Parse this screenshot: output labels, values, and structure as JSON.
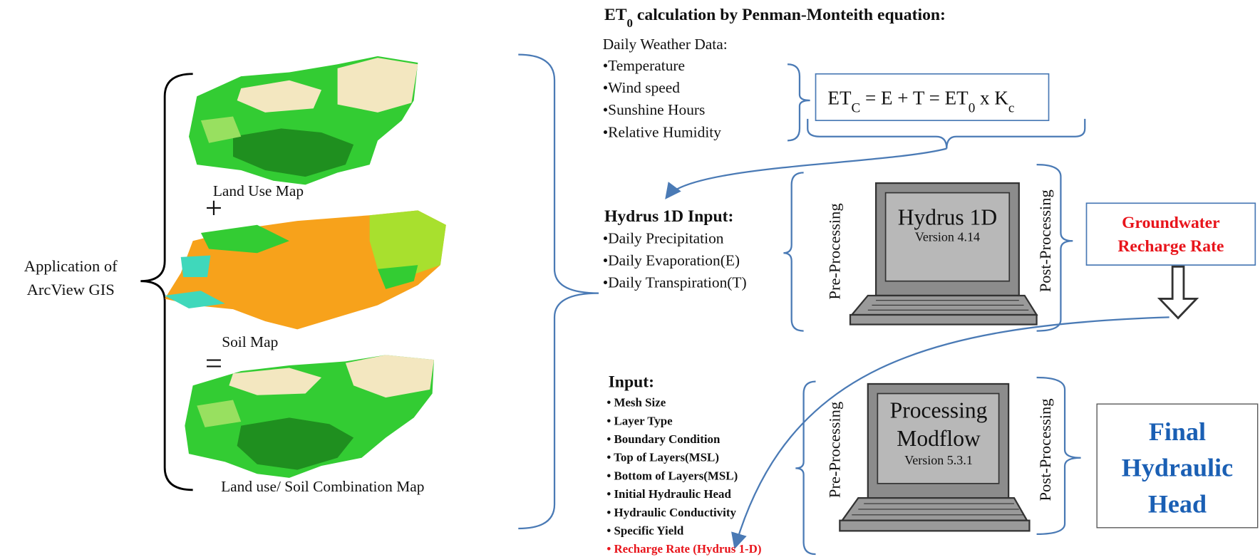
{
  "left_label": [
    "Application of",
    "ArcView GIS"
  ],
  "maps": [
    "Land Use Map",
    "Soil Map",
    "Land use/ Soil Combination Map"
  ],
  "operators": [
    "+",
    "="
  ],
  "et0": {
    "title": [
      "ET",
      "0",
      " calculation by Penman-Monteith equation:"
    ],
    "heading": "Daily Weather Data:",
    "items": [
      "•Temperature",
      "•Wind speed",
      "•Sunshine Hours",
      "•Relative Humidity"
    ]
  },
  "formula": [
    "ET",
    "C",
    " = E + T = ET",
    "0",
    " x K",
    "c"
  ],
  "hydrus_input": {
    "title": "Hydrus 1D Input:",
    "items": [
      "•Daily Precipitation",
      "•Daily Evaporation(E)",
      "•Daily Transpiration(T)"
    ]
  },
  "hydrus": {
    "pre": "Pre-Processing",
    "name": "Hydrus 1D",
    "version": "Version 4.14",
    "post": "Post-Processing"
  },
  "recharge_output": [
    "Groundwater",
    "Recharge Rate"
  ],
  "modflow_input": {
    "title": "Input:",
    "items": [
      "• Mesh Size",
      "• Layer Type",
      "• Boundary Condition",
      "• Top of Layers(MSL)",
      "• Bottom of Layers(MSL)",
      "• Initial Hydraulic Head",
      "• Hydraulic Conductivity",
      "• Specific Yield",
      "• Recharge Rate (Hydrus 1-D)"
    ]
  },
  "modflow": {
    "pre": "Pre-Processing",
    "name": [
      "Processing",
      "Modflow"
    ],
    "version": "Version 5.3.1",
    "post": "Post-Processing"
  },
  "final_output": [
    "Final",
    "Hydraulic",
    "Head"
  ]
}
